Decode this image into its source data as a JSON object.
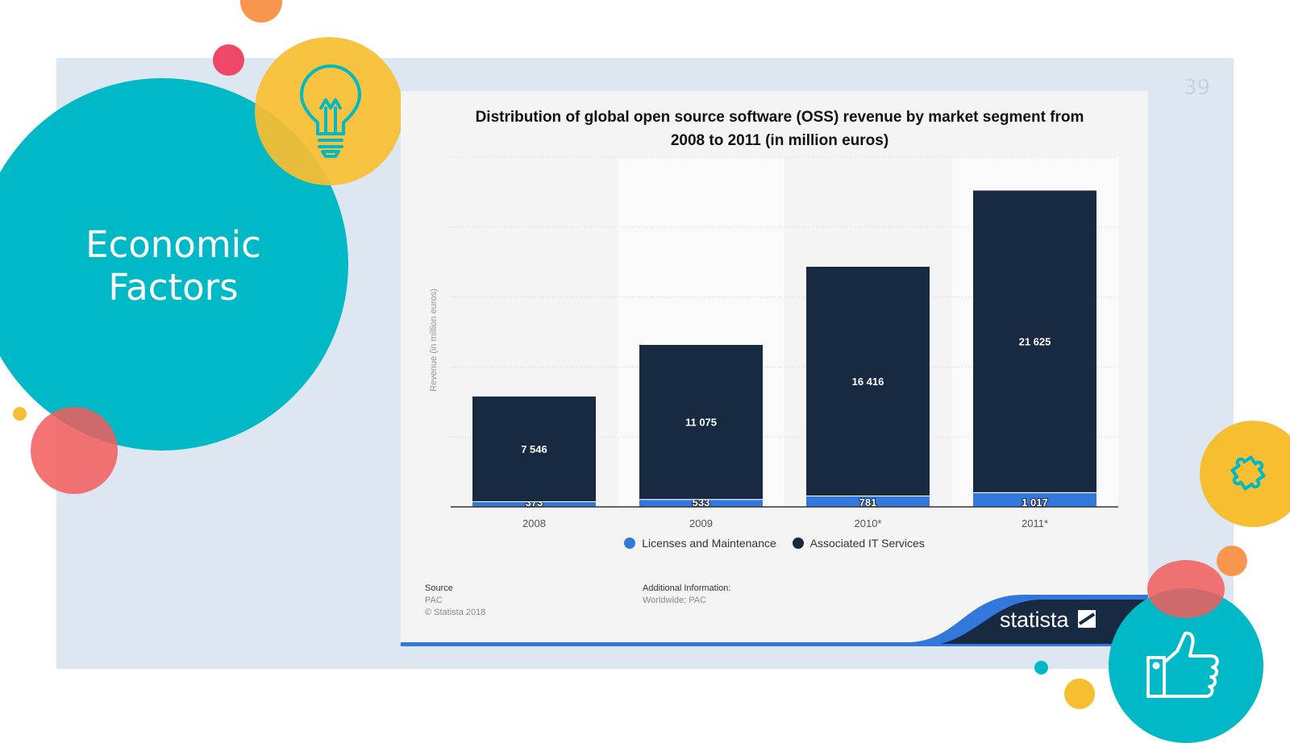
{
  "slide": {
    "title_line1": "Economic",
    "title_line2": "Factors",
    "page_number": "39"
  },
  "colors": {
    "teal": "#00b9c6",
    "yellow": "#f7be31",
    "coral": "#f25c5c",
    "pink": "#ef4866",
    "orange": "#f9964e",
    "panel": "#dde7f1",
    "navy": "#182a42",
    "blue": "#3278dc"
  },
  "icons": {
    "lightbulb": "lightbulb-icon",
    "puzzle": "puzzle-icon",
    "thumbs_up": "thumbs-up-icon",
    "statista_logo": "statista-logo-icon"
  },
  "chart_data": {
    "type": "bar",
    "stacked": true,
    "title": "Distribution of global open source software (OSS) revenue by market segment from 2008 to 2011 (in million euros)",
    "title_line1": "Distribution of global open source software (OSS) revenue by market segment from",
    "title_line2": "2008 to 2011 (in million euros)",
    "ylabel": "Revenue (in million euros)",
    "categories": [
      "2008",
      "2009",
      "2010*",
      "2011*"
    ],
    "series": [
      {
        "name": "Licenses and Maintenance",
        "values": [
          373,
          533,
          781,
          1017
        ],
        "labels": [
          "373",
          "533",
          "781",
          "1 017"
        ],
        "color": "#3278dc"
      },
      {
        "name": "Associated IT Services",
        "values": [
          7546,
          11075,
          16416,
          21625
        ],
        "labels": [
          "7 546",
          "11 075",
          "16 416",
          "21 625"
        ],
        "color": "#182a42"
      }
    ],
    "ylim": [
      0,
      25000
    ],
    "grid": true,
    "legend": "bottom"
  },
  "footer": {
    "source_label": "Source",
    "source_name": "PAC",
    "copyright": "© Statista 2018",
    "additional_label": "Additional Information:",
    "additional_text": "Worldwide; PAC",
    "brand": "statista"
  }
}
